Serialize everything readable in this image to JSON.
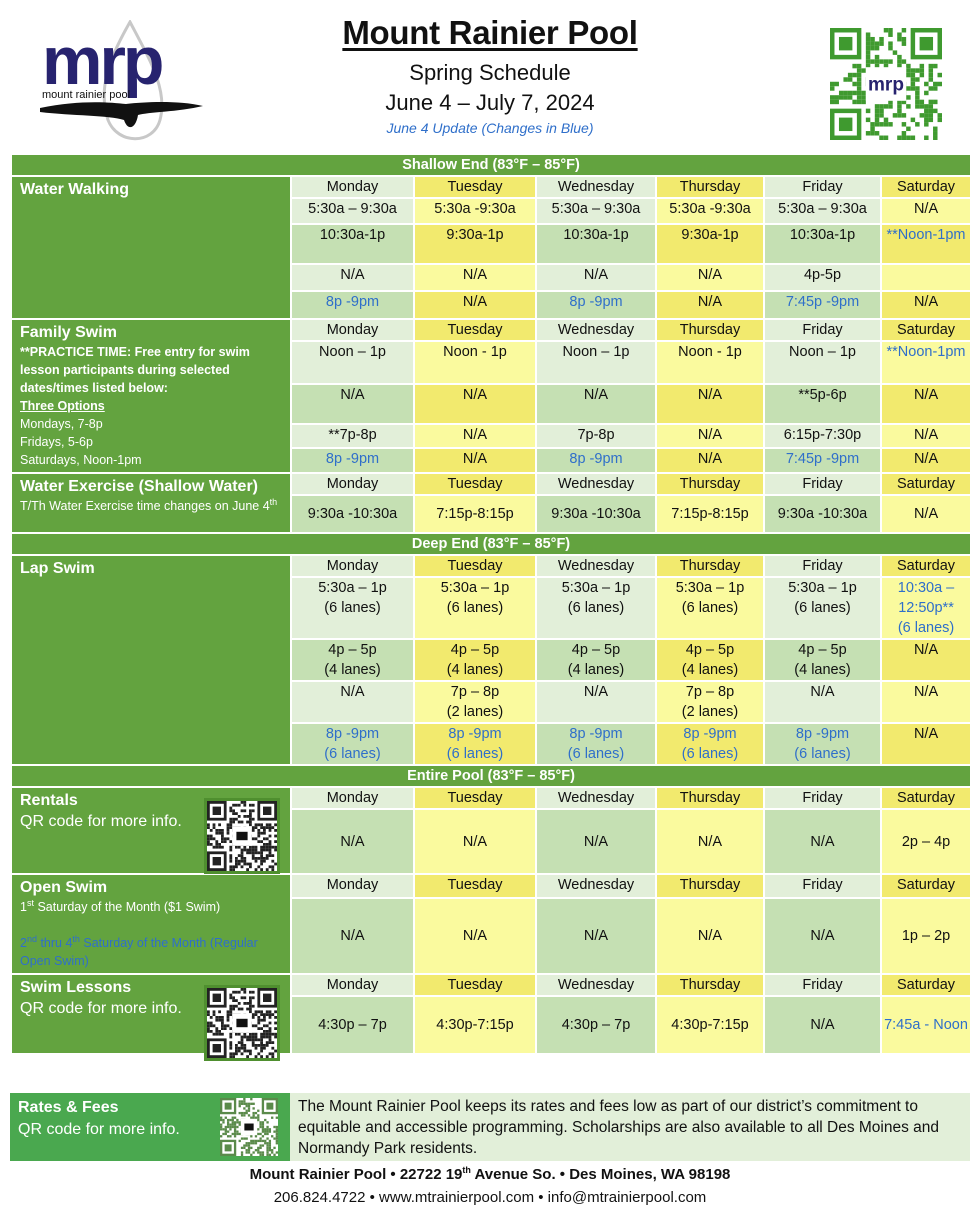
{
  "header": {
    "logo": {
      "letters": "mrp",
      "tagline": "mount rainier pool",
      "color": "#27236f"
    },
    "title": "Mount Rainier Pool",
    "subtitle": "Spring Schedule",
    "dates": "June 4 – July 7, 2024",
    "update_note": "June 4 Update (Changes in Blue)"
  },
  "colors": {
    "section_green": "#63a33f",
    "changed_blue": "#2f6fca",
    "light_green": "#e2efd9",
    "mid_green": "#c5e0b3",
    "light_yellow": "#fafa9e",
    "dark_yellow": "#f2ea6e"
  },
  "days": [
    "Monday",
    "Tuesday",
    "Wednesday",
    "Thursday",
    "Friday",
    "Saturday"
  ],
  "sections": [
    {
      "title": "Shallow End (83°F – 85°F)",
      "programs": [
        {
          "name": "Water Walking",
          "lines": [],
          "rows": [
            [
              "5:30a – 9:30a",
              "5:30a -9:30a",
              "5:30a – 9:30a",
              "5:30a -9:30a",
              "5:30a – 9:30a",
              "N/A"
            ],
            [
              "10:30a-1p",
              "9:30a-1p",
              "10:30a-1p",
              "9:30a-1p",
              "10:30a-1p",
              {
                "text": "**Noon-1pm",
                "changed": true
              }
            ],
            [
              "N/A",
              "N/A",
              "N/A",
              "N/A",
              "4p-5p",
              ""
            ],
            [
              {
                "text": "8p -9pm",
                "changed": true
              },
              "N/A",
              {
                "text": "8p -9pm",
                "changed": true
              },
              "N/A",
              {
                "text": "7:45p -9pm",
                "changed": true
              },
              "N/A"
            ]
          ]
        },
        {
          "name": "Family Swim",
          "lines": [
            {
              "text": "**PRACTICE TIME: Free entry for swim lesson participants during selected dates/times listed below:",
              "style": "bold"
            },
            {
              "text": "Three Options",
              "style": "bold u"
            },
            {
              "text": "Mondays, 7-8p",
              "style": ""
            },
            {
              "text": "Fridays, 5-6p",
              "style": ""
            },
            {
              "text": "Saturdays, Noon-1pm",
              "style": ""
            }
          ],
          "rows": [
            [
              "Noon – 1p",
              "Noon - 1p",
              "Noon – 1p",
              "Noon - 1p",
              "Noon – 1p",
              {
                "text": "**Noon-1pm",
                "changed": true
              }
            ],
            [
              "N/A",
              "N/A",
              "N/A",
              "N/A",
              "**5p-6p",
              "N/A"
            ],
            [
              "**7p-8p",
              "N/A",
              "7p-8p",
              "N/A",
              "6:15p-7:30p",
              "N/A"
            ],
            [
              {
                "text": "8p -9pm",
                "changed": true
              },
              "N/A",
              {
                "text": "8p -9pm",
                "changed": true
              },
              "N/A",
              {
                "text": "7:45p -9pm",
                "changed": true
              },
              "N/A"
            ]
          ]
        },
        {
          "name": "Water Exercise (Shallow Water)",
          "lines": [
            {
              "text": "T/Th Water Exercise time changes on June 4th",
              "style": ""
            }
          ],
          "rows": [
            [
              "9:30a -10:30a",
              "7:15p-8:15p",
              "9:30a -10:30a",
              "7:15p-8:15p",
              "9:30a -10:30a",
              "N/A"
            ]
          ]
        }
      ]
    },
    {
      "title": "Deep End (83°F – 85°F)",
      "programs": [
        {
          "name": "Lap Swim",
          "lines": [],
          "rows": [
            [
              "5:30a – 1p\n(6 lanes)",
              "5:30a – 1p\n(6 lanes)",
              "5:30a – 1p\n(6 lanes)",
              "5:30a – 1p\n(6 lanes)",
              "5:30a – 1p\n(6 lanes)",
              {
                "text": "10:30a – 12:50p**\n(6 lanes)",
                "changed": true
              }
            ],
            [
              "4p – 5p\n(4 lanes)",
              "4p – 5p\n(4 lanes)",
              "4p – 5p\n(4 lanes)",
              "4p – 5p\n(4 lanes)",
              "4p – 5p\n(4 lanes)",
              "N/A"
            ],
            [
              "N/A",
              "7p – 8p\n(2 lanes)",
              "N/A",
              "7p – 8p\n(2 lanes)",
              "N/A",
              "N/A"
            ],
            [
              {
                "text": "8p -9pm\n(6 lanes)",
                "changed": true
              },
              {
                "text": "8p -9pm\n(6 lanes)",
                "changed": true
              },
              {
                "text": "8p -9pm\n(6 lanes)",
                "changed": true
              },
              {
                "text": "8p -9pm\n(6 lanes)",
                "changed": true
              },
              {
                "text": "8p -9pm\n(6 lanes)",
                "changed": true
              },
              "N/A"
            ]
          ]
        }
      ]
    },
    {
      "title": "Entire Pool (83°F – 85°F)",
      "programs": [
        {
          "name": "Rentals",
          "qr": "cake-icon",
          "lines": [
            {
              "text": "QR code for more info.",
              "style": "big"
            }
          ],
          "rows": [
            [
              "N/A",
              "N/A",
              "N/A",
              "N/A",
              "N/A",
              "2p – 4p"
            ]
          ]
        },
        {
          "name": "Open Swim",
          "lines": [
            {
              "text": "1st Saturday of the Month ($1 Swim)",
              "style": ""
            },
            {
              "text": "",
              "style": ""
            },
            {
              "text": "2nd thru 4th Saturday of the Month (Regular Open Swim)",
              "style": "blue"
            }
          ],
          "rows": [
            [
              "N/A",
              "N/A",
              "N/A",
              "N/A",
              "N/A",
              "1p – 2p"
            ]
          ]
        },
        {
          "name": "Swim Lessons",
          "qr": "swimmer-icon",
          "lines": [
            {
              "text": "QR code for more info.",
              "style": "big"
            }
          ],
          "rows": [
            [
              "4:30p – 7p",
              "4:30p-7:15p",
              "4:30p – 7p",
              "4:30p-7:15p",
              "N/A",
              {
                "text": "7:45a - Noon",
                "changed": true
              }
            ]
          ]
        }
      ]
    }
  ],
  "rates": {
    "title": "Rates & Fees",
    "subtitle": "QR code for more info.",
    "text": "The Mount Rainier Pool keeps its rates and fees low as part of our district’s commitment to equitable and accessible programming. Scholarships are also available to all Des Moines and Normandy Park residents."
  },
  "footer": {
    "address": "Mount Rainier Pool • 22722 19th Avenue So. • Des Moines, WA 98198",
    "contact": "206.824.4722 • www.mtrainierpool.com • info@mtrainierpool.com"
  }
}
